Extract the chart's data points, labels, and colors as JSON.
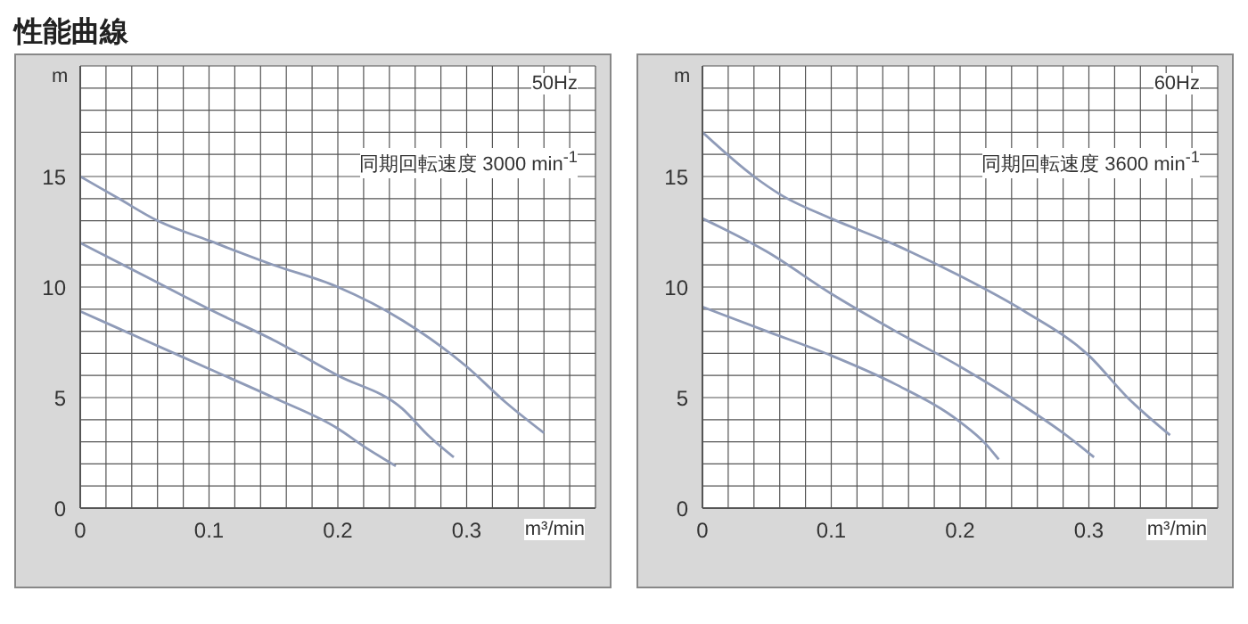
{
  "chart_data": [
    {
      "type": "line",
      "title": "性能曲線",
      "xlabel": "m³/min",
      "ylabel": "m",
      "annotations": [
        "50Hz",
        "同期回転速度 3000 min$^{-1}$"
      ],
      "xlim": [
        0,
        0.4
      ],
      "ylim": [
        0,
        20
      ],
      "grid": true,
      "marker": "none",
      "xticks": [
        0,
        {
          "value": 0.02,
          "label": null
        },
        {
          "value": 0.04,
          "label": null
        },
        {
          "value": 0.06,
          "label": null
        },
        {
          "value": 0.08,
          "label": null
        },
        0.1,
        {
          "value": 0.12,
          "label": null
        },
        {
          "value": 0.14,
          "label": null
        },
        {
          "value": 0.16,
          "label": null
        },
        {
          "value": 0.18,
          "label": null
        },
        0.2,
        {
          "value": 0.22,
          "label": null
        },
        {
          "value": 0.24,
          "label": null
        },
        {
          "value": 0.26,
          "label": null
        },
        {
          "value": 0.28,
          "label": null
        },
        0.3,
        {
          "value": 0.32,
          "label": null
        },
        {
          "value": 0.34,
          "label": null
        },
        {
          "value": 0.36,
          "label": null
        },
        {
          "value": 0.38,
          "label": null
        },
        {
          "value": 0.4,
          "label": null
        }
      ],
      "yticks": [
        0,
        {
          "value": 1,
          "label": null
        },
        {
          "value": 2,
          "label": null
        },
        {
          "value": 3,
          "label": null
        },
        {
          "value": 4,
          "label": null
        },
        5,
        {
          "value": 6,
          "label": null
        },
        {
          "value": 7,
          "label": null
        },
        {
          "value": 8,
          "label": null
        },
        {
          "value": 9,
          "label": null
        },
        10,
        {
          "value": 11,
          "label": null
        },
        {
          "value": 12,
          "label": null
        },
        {
          "value": 13,
          "label": null
        },
        {
          "value": 14,
          "label": null
        },
        15,
        {
          "value": 16,
          "label": null
        },
        {
          "value": 17,
          "label": null
        },
        {
          "value": 18,
          "label": null
        },
        {
          "value": 19,
          "label": null
        },
        {
          "value": 20,
          "label": null
        }
      ],
      "series": [
        {
          "color": "#8f9bb8",
          "x": [
            0,
            0.03,
            0.06,
            0.1,
            0.15,
            0.2,
            0.25,
            0.3,
            0.33,
            0.36
          ],
          "values": [
            15,
            14,
            13,
            12.1,
            11,
            10,
            8.5,
            6.4,
            4.8,
            3.4
          ]
        },
        {
          "color": "#8f9bb8",
          "x": [
            0,
            0.05,
            0.1,
            0.15,
            0.2,
            0.25,
            0.27,
            0.29
          ],
          "values": [
            12,
            10.5,
            9,
            7.6,
            6,
            4.5,
            3.3,
            2.3
          ]
        },
        {
          "color": "#8f9bb8",
          "x": [
            0,
            0.05,
            0.1,
            0.15,
            0.2,
            0.22,
            0.245
          ],
          "values": [
            8.9,
            7.6,
            6.3,
            5,
            3.6,
            2.8,
            1.9
          ]
        }
      ]
    },
    {
      "type": "line",
      "xlabel": "m³/min",
      "ylabel": "m",
      "annotations": [
        "60Hz",
        "同期回転速度 3600 min$^{-1}$"
      ],
      "xlim": [
        0,
        0.4
      ],
      "ylim": [
        0,
        20
      ],
      "grid": true,
      "marker": "none",
      "xticks": [
        0,
        {
          "value": 0.02,
          "label": null
        },
        {
          "value": 0.04,
          "label": null
        },
        {
          "value": 0.06,
          "label": null
        },
        {
          "value": 0.08,
          "label": null
        },
        0.1,
        {
          "value": 0.12,
          "label": null
        },
        {
          "value": 0.14,
          "label": null
        },
        {
          "value": 0.16,
          "label": null
        },
        {
          "value": 0.18,
          "label": null
        },
        0.2,
        {
          "value": 0.22,
          "label": null
        },
        {
          "value": 0.24,
          "label": null
        },
        {
          "value": 0.26,
          "label": null
        },
        {
          "value": 0.28,
          "label": null
        },
        0.3,
        {
          "value": 0.32,
          "label": null
        },
        {
          "value": 0.34,
          "label": null
        },
        {
          "value": 0.36,
          "label": null
        },
        {
          "value": 0.38,
          "label": null
        },
        {
          "value": 0.4,
          "label": null
        }
      ],
      "yticks": [
        0,
        {
          "value": 1,
          "label": null
        },
        {
          "value": 2,
          "label": null
        },
        {
          "value": 3,
          "label": null
        },
        {
          "value": 4,
          "label": null
        },
        5,
        {
          "value": 6,
          "label": null
        },
        {
          "value": 7,
          "label": null
        },
        {
          "value": 8,
          "label": null
        },
        {
          "value": 9,
          "label": null
        },
        10,
        {
          "value": 11,
          "label": null
        },
        {
          "value": 12,
          "label": null
        },
        {
          "value": 13,
          "label": null
        },
        {
          "value": 14,
          "label": null
        },
        15,
        {
          "value": 16,
          "label": null
        },
        {
          "value": 17,
          "label": null
        },
        {
          "value": 18,
          "label": null
        },
        {
          "value": 19,
          "label": null
        },
        {
          "value": 20,
          "label": null
        }
      ],
      "series": [
        {
          "color": "#8f9bb8",
          "x": [
            0,
            0.04,
            0.06,
            0.1,
            0.15,
            0.2,
            0.25,
            0.3,
            0.33,
            0.363
          ],
          "values": [
            17,
            15,
            14.2,
            13.1,
            11.9,
            10.5,
            8.9,
            6.9,
            5,
            3.3
          ]
        },
        {
          "color": "#8f9bb8",
          "x": [
            0,
            0.05,
            0.1,
            0.15,
            0.2,
            0.25,
            0.28,
            0.304
          ],
          "values": [
            13.1,
            11.6,
            9.7,
            8,
            6.4,
            4.6,
            3.4,
            2.3
          ]
        },
        {
          "color": "#8f9bb8",
          "x": [
            0,
            0.05,
            0.1,
            0.15,
            0.2,
            0.22,
            0.23
          ],
          "values": [
            9.1,
            8,
            6.9,
            5.6,
            3.9,
            2.9,
            2.2
          ]
        }
      ]
    }
  ]
}
